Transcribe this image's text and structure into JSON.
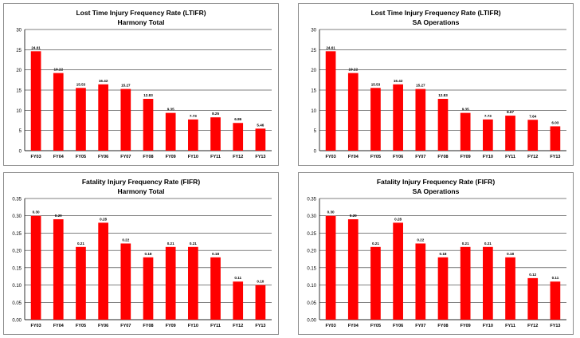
{
  "chart_data": [
    {
      "type": "bar",
      "title": "Lost Time Injury Frequency Rate (LTIFR)",
      "subtitle": "Harmony Total",
      "categories": [
        "FY03",
        "FY04",
        "FY05",
        "FY06",
        "FY07",
        "FY08",
        "FY09",
        "FY10",
        "FY11",
        "FY12",
        "FY13"
      ],
      "values": [
        24.61,
        19.22,
        15.53,
        16.42,
        15.27,
        12.83,
        9.35,
        7.73,
        8.25,
        6.86,
        5.46
      ],
      "value_labels": [
        "24.61",
        "19.22",
        "15.53",
        "16.42",
        "15.27",
        "12.83",
        "9.35",
        "7.73",
        "8.25",
        "6.86",
        "5.46"
      ],
      "ylim": [
        0,
        30
      ],
      "yticks": [
        "0",
        "5",
        "10",
        "15",
        "20",
        "25",
        "30"
      ],
      "bar_color": "#ff0000",
      "grid": true
    },
    {
      "type": "bar",
      "title": "Lost Time Injury Frequency Rate (LTIFR)",
      "subtitle": "SA Operations",
      "categories": [
        "FY03",
        "FY04",
        "FY05",
        "FY06",
        "FY07",
        "FY08",
        "FY09",
        "FY10",
        "FY11",
        "FY12",
        "FY13"
      ],
      "values": [
        24.61,
        19.22,
        15.53,
        16.42,
        15.27,
        12.83,
        9.35,
        7.73,
        8.67,
        7.64,
        6.03
      ],
      "value_labels": [
        "24.61",
        "19.22",
        "15.53",
        "16.42",
        "15.27",
        "12.83",
        "9.35",
        "7.73",
        "8.67",
        "7.64",
        "6.03"
      ],
      "ylim": [
        0,
        30
      ],
      "yticks": [
        "0",
        "5",
        "10",
        "15",
        "20",
        "25",
        "30"
      ],
      "bar_color": "#ff0000",
      "grid": true
    },
    {
      "type": "bar",
      "title": "Fatality Injury Frequency Rate (FIFR)",
      "subtitle": "Harmony Total",
      "categories": [
        "FY03",
        "FY04",
        "FY05",
        "FY06",
        "FY07",
        "FY08",
        "FY09",
        "FY10",
        "FY11",
        "FY12",
        "FY13"
      ],
      "values": [
        0.3,
        0.29,
        0.21,
        0.28,
        0.22,
        0.18,
        0.21,
        0.21,
        0.18,
        0.11,
        0.1
      ],
      "value_labels": [
        "0.30",
        "0.29",
        "0.21",
        "0.28",
        "0.22",
        "0.18",
        "0.21",
        "0.21",
        "0.18",
        "0.11",
        "0.10"
      ],
      "ylim": [
        0,
        0.35
      ],
      "yticks": [
        "0.00",
        "0.05",
        "0.10",
        "0.15",
        "0.20",
        "0.25",
        "0.30",
        "0.35"
      ],
      "bar_color": "#ff0000",
      "grid": true
    },
    {
      "type": "bar",
      "title": "Fatality Injury Frequency Rate (FIFR)",
      "subtitle": "SA Operations",
      "categories": [
        "FY03",
        "FY04",
        "FY05",
        "FY06",
        "FY07",
        "FY08",
        "FY09",
        "FY10",
        "FY11",
        "FY12",
        "FY13"
      ],
      "values": [
        0.3,
        0.29,
        0.21,
        0.28,
        0.22,
        0.18,
        0.21,
        0.21,
        0.18,
        0.12,
        0.11
      ],
      "value_labels": [
        "0.30",
        "0.29",
        "0.21",
        "0.28",
        "0.22",
        "0.18",
        "0.21",
        "0.21",
        "0.18",
        "0.12",
        "0.11"
      ],
      "ylim": [
        0,
        0.35
      ],
      "yticks": [
        "0.00",
        "0.05",
        "0.10",
        "0.15",
        "0.20",
        "0.25",
        "0.30",
        "0.35"
      ],
      "bar_color": "#ff0000",
      "grid": true
    }
  ]
}
